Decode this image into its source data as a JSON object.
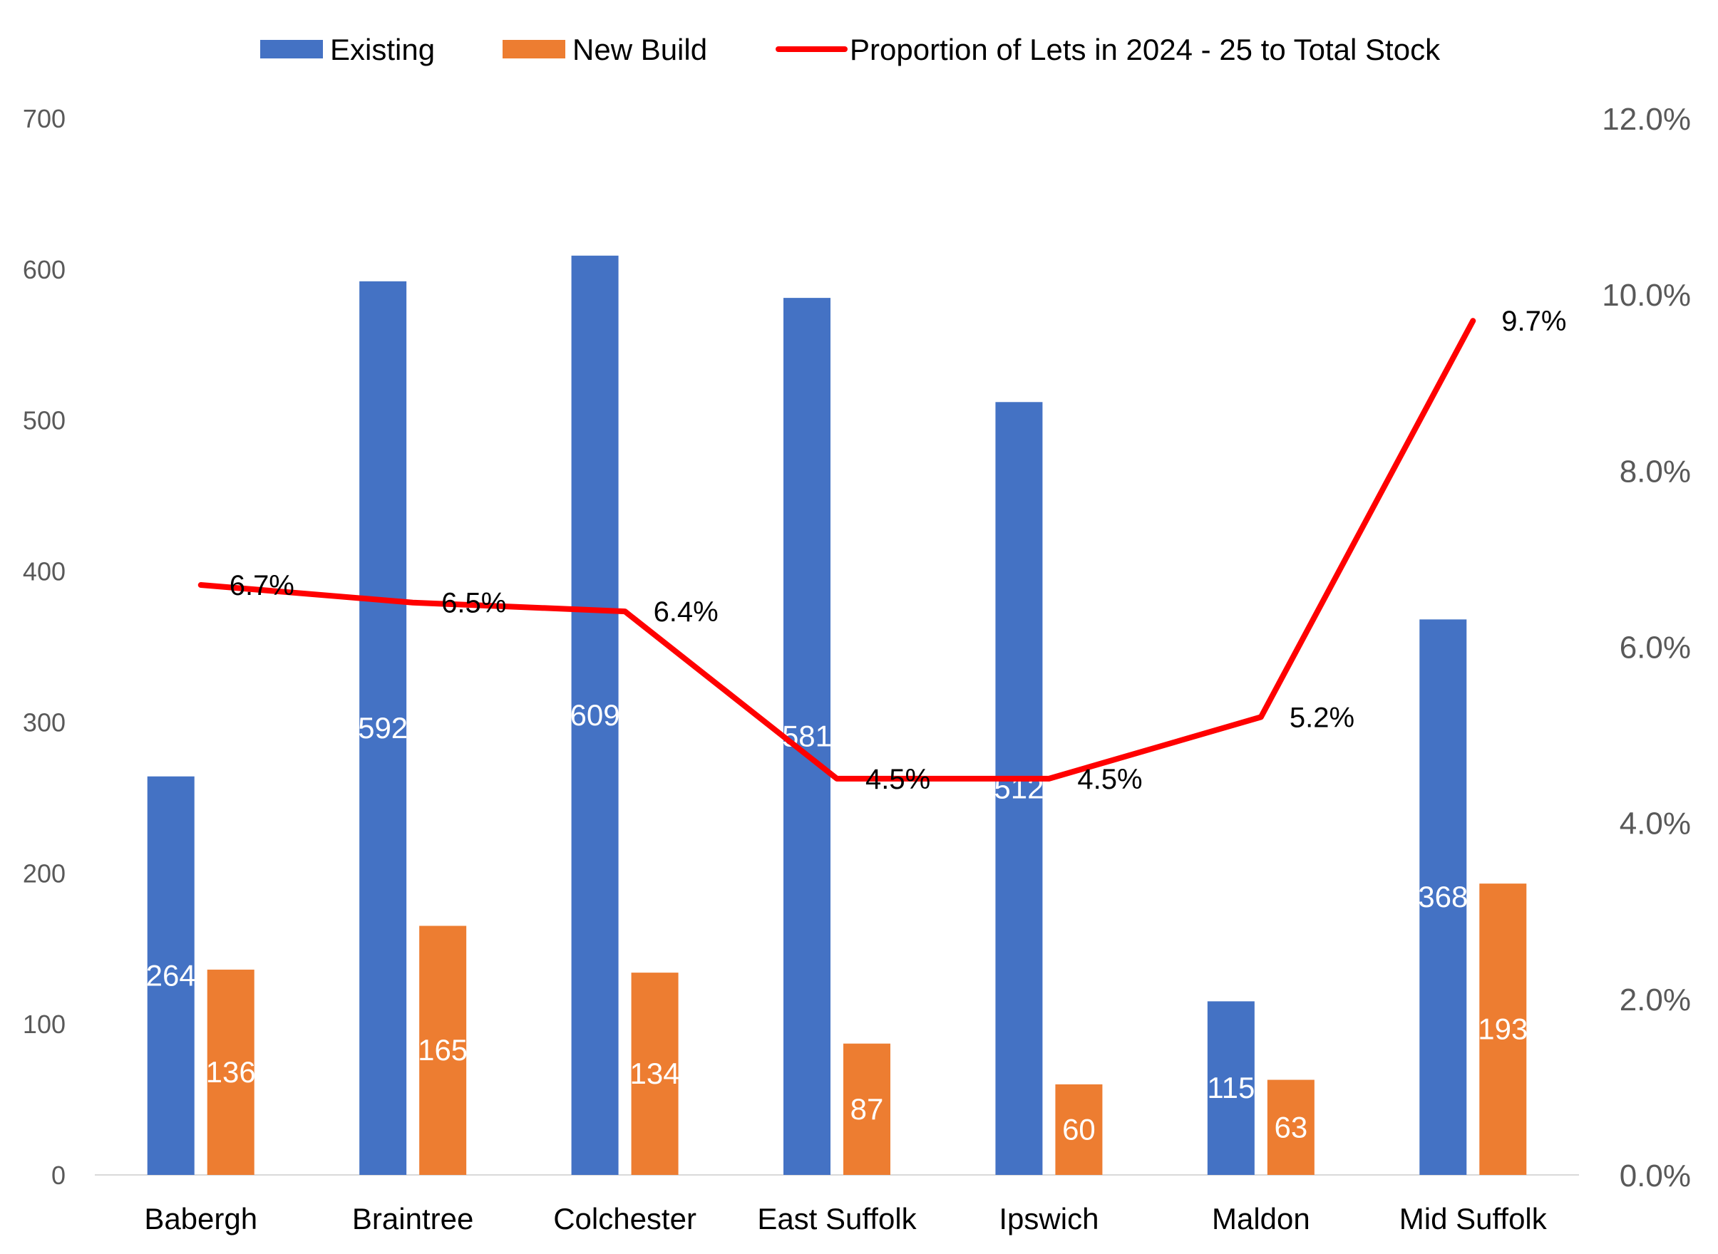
{
  "chart_data": {
    "type": "bar",
    "categories": [
      "Babergh",
      "Braintree",
      "Colchester",
      "East Suffolk",
      "Ipswich",
      "Maldon",
      "Mid Suffolk"
    ],
    "series": [
      {
        "name": "Existing",
        "type": "bar",
        "axis": "left",
        "color": "#4472C4",
        "values": [
          264,
          592,
          609,
          581,
          512,
          115,
          368
        ],
        "labels": [
          "264",
          "592",
          "609",
          "581",
          "512",
          "115",
          "368"
        ]
      },
      {
        "name": "New Build",
        "type": "bar",
        "axis": "left",
        "color": "#ED7D31",
        "values": [
          136,
          165,
          134,
          87,
          60,
          63,
          193
        ],
        "labels": [
          "136",
          "165",
          "134",
          "87",
          "60",
          "63",
          "193"
        ]
      },
      {
        "name": "Proportion of Lets in 2024 - 25 to Total Stock",
        "type": "line",
        "axis": "right",
        "color": "#FF0000",
        "values": [
          6.7,
          6.5,
          6.4,
          4.5,
          4.5,
          5.2,
          9.7
        ],
        "labels": [
          "6.7%",
          "6.5%",
          "6.4%",
          "4.5%",
          "4.5%",
          "5.2%",
          "9.7%"
        ]
      }
    ],
    "y_left": {
      "min": 0,
      "max": 700,
      "ticks": [
        "0",
        "100",
        "200",
        "300",
        "400",
        "500",
        "600",
        "700"
      ]
    },
    "y_right": {
      "min": 0,
      "max": 12,
      "ticks": [
        "0.0%",
        "2.0%",
        "4.0%",
        "6.0%",
        "8.0%",
        "10.0%",
        "12.0%"
      ]
    },
    "legend_position": "top",
    "grid": false
  }
}
